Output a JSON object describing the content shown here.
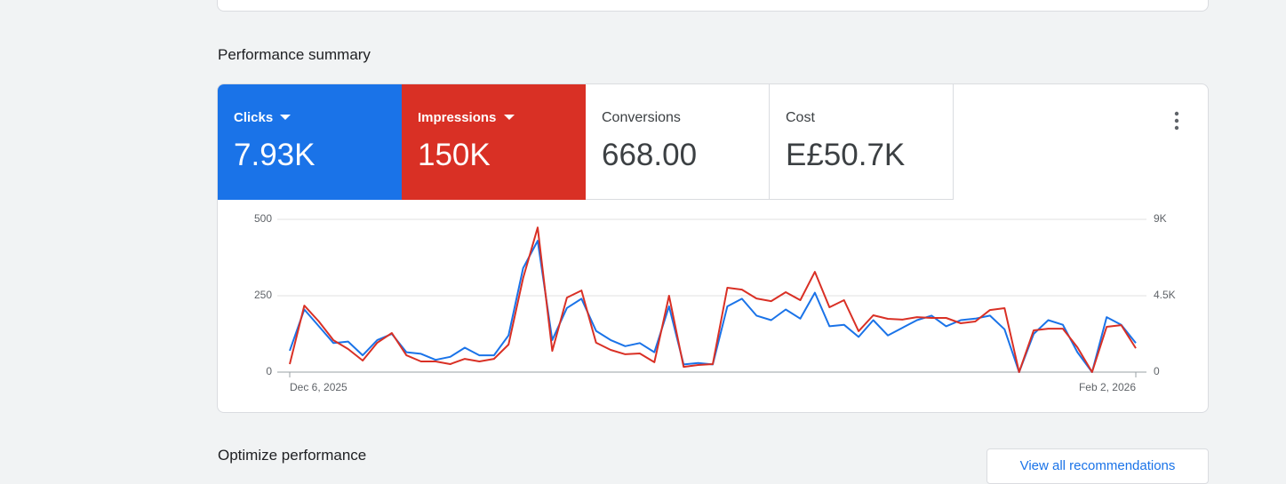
{
  "section_title": "Performance summary",
  "metrics": [
    {
      "label": "Clicks",
      "value": "7.93K"
    },
    {
      "label": "Impressions",
      "value": "150K"
    },
    {
      "label": "Conversions",
      "value": "668.00"
    },
    {
      "label": "Cost",
      "value": "E£50.7K"
    }
  ],
  "chart_data": {
    "type": "line",
    "categories": [
      "Dec 6, 2025",
      null,
      null,
      null,
      null,
      null,
      null,
      null,
      null,
      null,
      null,
      null,
      null,
      null,
      null,
      null,
      null,
      null,
      null,
      null,
      null,
      null,
      null,
      null,
      null,
      null,
      null,
      null,
      null,
      null,
      null,
      null,
      null,
      null,
      null,
      null,
      null,
      null,
      null,
      null,
      null,
      null,
      null,
      null,
      null,
      null,
      null,
      null,
      null,
      null,
      null,
      null,
      null,
      null,
      null,
      null,
      null,
      null,
      "Feb 2, 2026"
    ],
    "series": [
      {
        "name": "Clicks",
        "color": "#1a73e8",
        "values": [
          70,
          205,
          150,
          95,
          100,
          55,
          105,
          125,
          65,
          60,
          40,
          50,
          80,
          55,
          55,
          120,
          340,
          430,
          105,
          210,
          240,
          135,
          105,
          85,
          95,
          65,
          215,
          25,
          30,
          25,
          215,
          240,
          185,
          170,
          205,
          175,
          260,
          150,
          155,
          115,
          170,
          120,
          145,
          170,
          185,
          150,
          170,
          175,
          185,
          140,
          0,
          125,
          170,
          155,
          65,
          0,
          180,
          155,
          95
        ]
      },
      {
        "name": "Impressions",
        "color": "#d93025",
        "axis": "y2",
        "values": [
          470,
          3920,
          2980,
          1880,
          1360,
          680,
          1730,
          2300,
          990,
          630,
          630,
          470,
          780,
          630,
          780,
          1620,
          5540,
          8520,
          1250,
          4390,
          4810,
          1730,
          1310,
          1050,
          1100,
          580,
          4500,
          310,
          420,
          470,
          4970,
          4860,
          4340,
          4180,
          4710,
          4240,
          5910,
          3820,
          4240,
          2410,
          3350,
          3140,
          3090,
          3240,
          3190,
          3190,
          2880,
          2980,
          3660,
          3770,
          0,
          2460,
          2560,
          2560,
          1460,
          0,
          2670,
          2770,
          1410
        ]
      }
    ],
    "ylim": [
      0,
      500
    ],
    "yticks": [
      0,
      250,
      500
    ],
    "y2lim": [
      0,
      9000
    ],
    "y2ticks": [
      0,
      {
        "value": 4500,
        "label": "4.5K"
      },
      {
        "value": 9000,
        "label": "9K"
      }
    ],
    "grid": true
  },
  "next_section_title": "Optimize performance",
  "button": "View all recommendations"
}
